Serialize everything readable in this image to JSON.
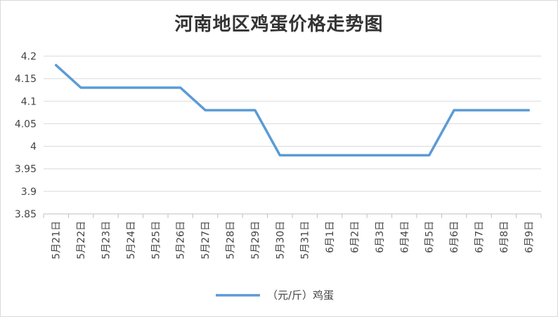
{
  "chart_data": {
    "type": "line",
    "title": "河南地区鸡蛋价格走势图",
    "categories": [
      "5月21日",
      "5月22日",
      "5月23日",
      "5月24日",
      "5月25日",
      "5月26日",
      "5月27日",
      "5月28日",
      "5月29日",
      "5月30日",
      "5月31日",
      "6月1日",
      "6月2日",
      "6月3日",
      "6月4日",
      "6月5日",
      "6月6日",
      "6月7日",
      "6月8日",
      "6月9日"
    ],
    "series": [
      {
        "name": "（元/斤）鸡蛋",
        "color": "#5b9bd5",
        "values": [
          4.18,
          4.13,
          4.13,
          4.13,
          4.13,
          4.13,
          4.08,
          4.08,
          4.08,
          3.98,
          3.98,
          3.98,
          3.98,
          3.98,
          3.98,
          3.98,
          4.08,
          4.08,
          4.08,
          4.08
        ]
      }
    ],
    "ylim": [
      3.85,
      4.2
    ],
    "yticks": [
      "3.85",
      "3.9",
      "3.95",
      "4",
      "4.05",
      "4.1",
      "4.15",
      "4.2"
    ],
    "ytick_values": [
      3.85,
      3.9,
      3.95,
      4.0,
      4.05,
      4.1,
      4.15,
      4.2
    ],
    "grid": true,
    "legend_position": "bottom"
  }
}
